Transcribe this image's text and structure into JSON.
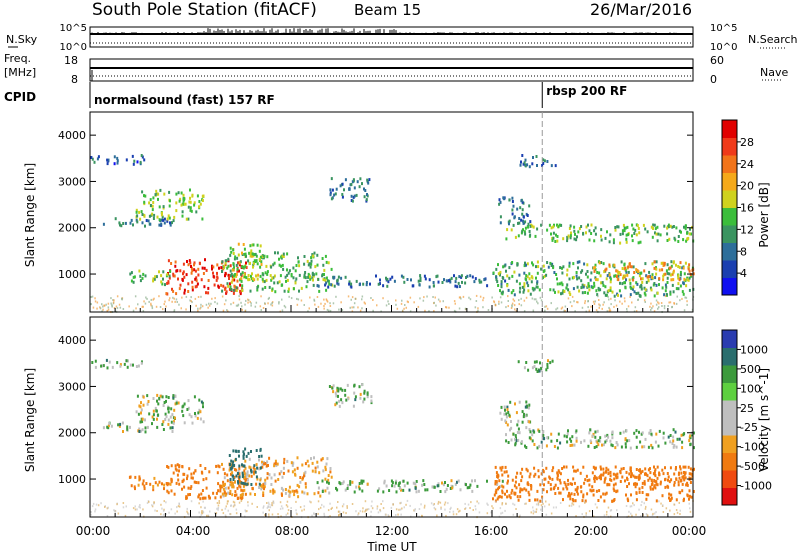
{
  "header": {
    "title": "South Pole Station (fitACF)",
    "beam": "Beam 15",
    "date": "26/Mar/2016"
  },
  "panels": {
    "nsky": {
      "left_label": "N.Sky",
      "right_label": "N.Search",
      "left_ticks": [
        "10^5",
        "10^0"
      ],
      "right_ticks": [
        "10^5",
        "10^0"
      ]
    },
    "freq": {
      "left_label_1": "Freq.",
      "left_label_2": "[MHz]",
      "left_ticks": [
        "18",
        "8"
      ],
      "right_label": "Nave",
      "right_ticks": [
        "60",
        "0"
      ]
    },
    "cpid": {
      "label": "CPID",
      "segments": [
        {
          "label": "normalsound (fast) 157 RF",
          "start_hour": 0
        },
        {
          "label": "rbsp 200 RF",
          "start_hour": 18.0
        }
      ]
    }
  },
  "axes": {
    "ylabel": "Slant Range [km]",
    "yticks": [
      "1000",
      "2000",
      "3000",
      "4000"
    ],
    "xlabel": "Time UT",
    "xticks": [
      "00:00",
      "04:00",
      "08:00",
      "12:00",
      "16:00",
      "20:00",
      "00:00"
    ]
  },
  "colorbars": {
    "power": {
      "label": "Power [dB]",
      "ticks": [
        "4",
        "8",
        "12",
        "16",
        "20",
        "24",
        "28"
      ],
      "colors": [
        "#1010f0",
        "#1a3fb0",
        "#2d6e9a",
        "#3a9460",
        "#3bbd3b",
        "#cfd21e",
        "#f5a91a",
        "#f2741a",
        "#ef3a1a",
        "#e00000"
      ]
    },
    "velocity": {
      "label": "Velocity [m s^-1]",
      "ticks": [
        "1000",
        "500",
        "100",
        "25",
        "-25",
        "-100",
        "-500",
        "-1000"
      ],
      "colors": [
        "#2a3cb0",
        "#2a6e6e",
        "#3c9a3c",
        "#5ed040",
        "#bfbfbf",
        "#bfbfbf",
        "#f0a020",
        "#f07a10",
        "#f04a10",
        "#e01010"
      ]
    }
  },
  "chart_data": {
    "type": "heatmap",
    "title": "South Pole Station (fitACF)",
    "xlabel": "Time UT",
    "ylabel": "Slant Range [km]",
    "xlim_hours": [
      0,
      24
    ],
    "ylim_km": [
      180,
      4500
    ],
    "marker_hour": 18.0,
    "echo_regions": [
      {
        "t0": 0.5,
        "t1": 3.3,
        "r0": 2050,
        "r1": 2250,
        "power": 8,
        "velocity": 25
      },
      {
        "t0": 1.8,
        "t1": 4.5,
        "r0": 2200,
        "r1": 2850,
        "power": 14,
        "velocity": 25
      },
      {
        "t0": 0.0,
        "t1": 2.2,
        "r0": 3400,
        "r1": 3600,
        "power": 6,
        "velocity": 25
      },
      {
        "t0": 3.0,
        "t1": 6.2,
        "r0": 600,
        "r1": 1350,
        "power": 26,
        "velocity": -300
      },
      {
        "t0": 1.5,
        "t1": 3.2,
        "r0": 800,
        "r1": 1100,
        "power": 14,
        "velocity": -150
      },
      {
        "t0": 5.2,
        "t1": 9.6,
        "r0": 650,
        "r1": 1500,
        "power": 13,
        "velocity": -60
      },
      {
        "t0": 5.5,
        "t1": 6.8,
        "r0": 900,
        "r1": 1700,
        "power": 16,
        "velocity": 300
      },
      {
        "t0": 9.5,
        "t1": 11.2,
        "r0": 2600,
        "r1": 3100,
        "power": 8,
        "velocity": 25
      },
      {
        "t0": 9.0,
        "t1": 16.5,
        "r0": 750,
        "r1": 1000,
        "power": 8,
        "velocity": 25
      },
      {
        "t0": 16.2,
        "t1": 17.5,
        "r0": 2100,
        "r1": 2700,
        "power": 8,
        "velocity": 25
      },
      {
        "t0": 16.5,
        "t1": 24.0,
        "r0": 1700,
        "r1": 2100,
        "power": 13,
        "velocity": 25
      },
      {
        "t0": 16.0,
        "t1": 24.0,
        "r0": 550,
        "r1": 1300,
        "power": 12,
        "velocity": -200
      },
      {
        "t0": 17.0,
        "t1": 18.5,
        "r0": 3350,
        "r1": 3600,
        "power": 8,
        "velocity": 25
      },
      {
        "t0": 20.0,
        "t1": 24.0,
        "r0": 900,
        "r1": 1300,
        "power": 20,
        "velocity": -300
      }
    ]
  }
}
